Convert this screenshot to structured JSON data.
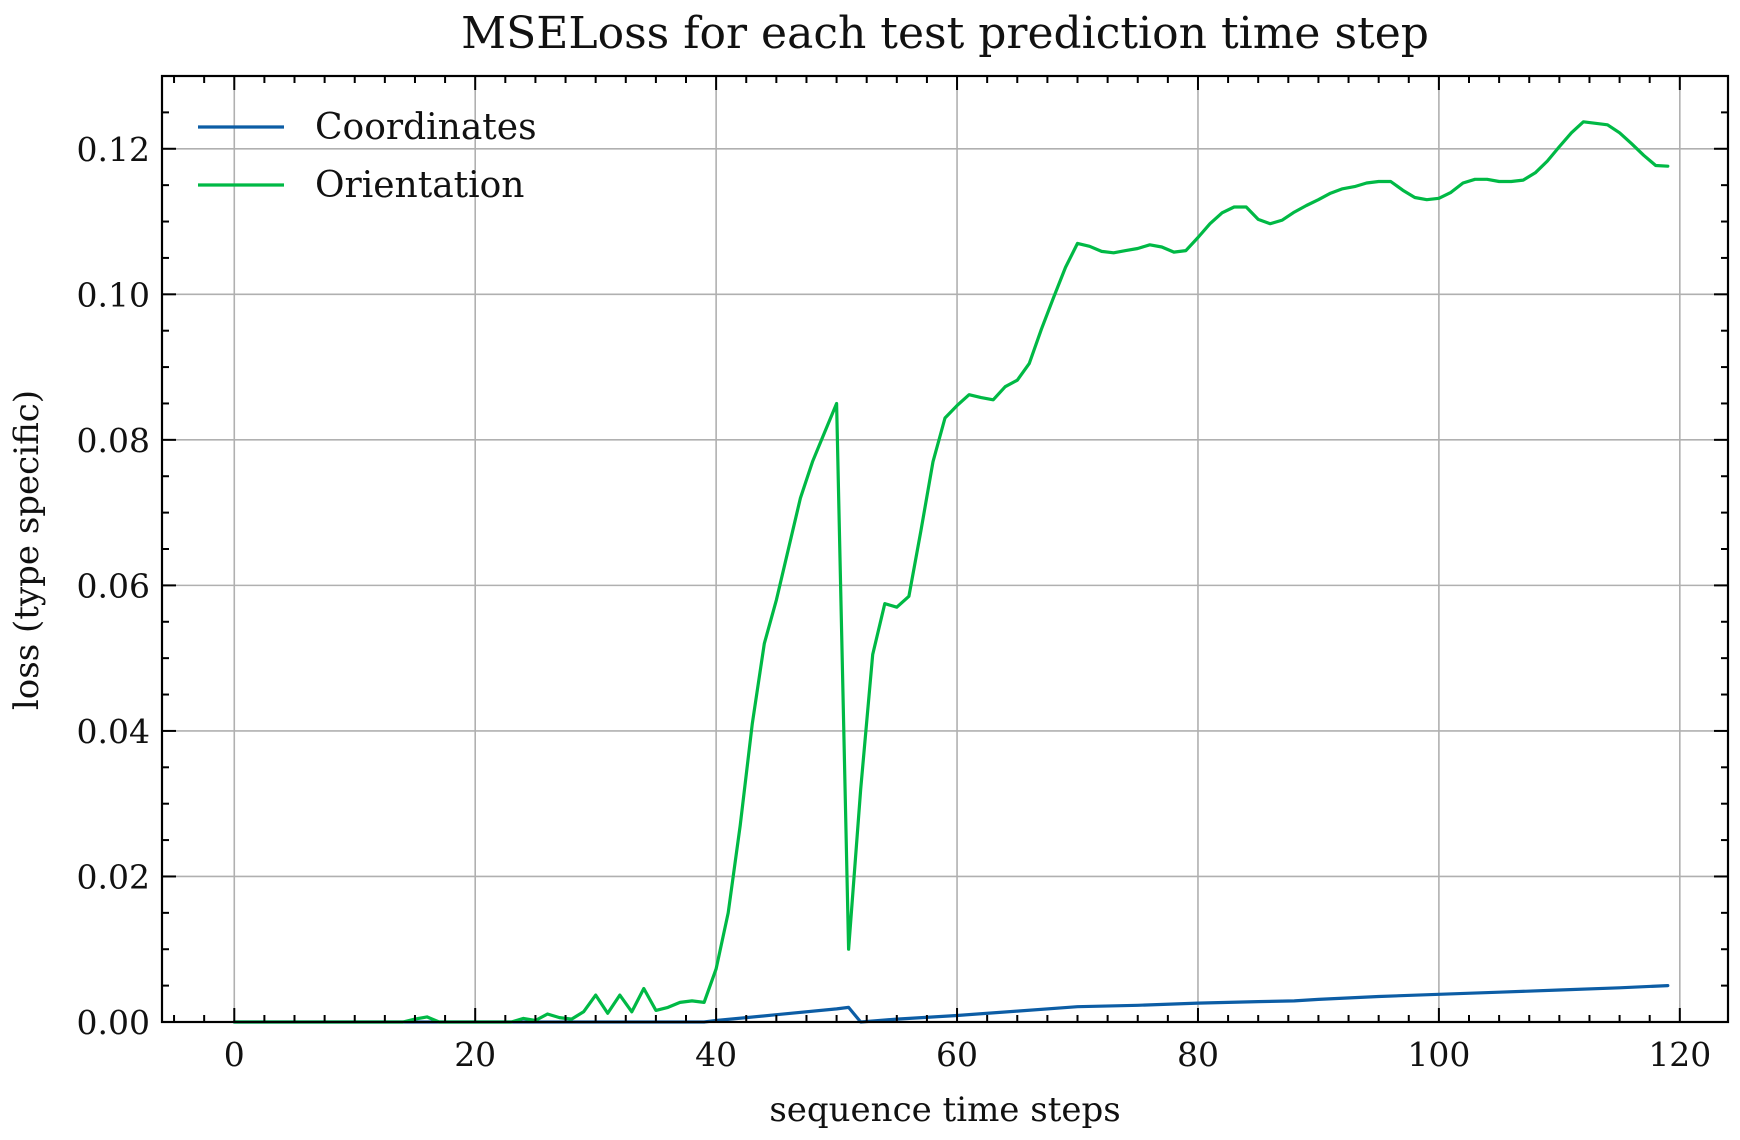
{
  "chart_data": {
    "type": "line",
    "title": "MSELoss for each test prediction time step",
    "xlabel": "sequence time steps",
    "ylabel": "loss (type specific)",
    "xlim": [
      -6,
      124
    ],
    "ylim": [
      0,
      0.13
    ],
    "xticks": [
      0,
      20,
      40,
      60,
      80,
      100,
      120
    ],
    "xtick_labels": [
      "0",
      "20",
      "40",
      "60",
      "80",
      "100",
      "120"
    ],
    "yticks": [
      0.0,
      0.02,
      0.04,
      0.06,
      0.08,
      0.1,
      0.12
    ],
    "ytick_labels": [
      "0.00",
      "0.02",
      "0.04",
      "0.06",
      "0.08",
      "0.10",
      "0.12"
    ],
    "grid": true,
    "legend_position": "top-left",
    "series": [
      {
        "name": "Coordinates",
        "color": "#0c5da5",
        "x": [
          0,
          10,
          20,
          30,
          39,
          40,
          45,
          50,
          51,
          52,
          55,
          60,
          65,
          70,
          75,
          80,
          85,
          88,
          90,
          95,
          100,
          105,
          110,
          115,
          119
        ],
        "y": [
          0,
          0,
          0,
          0,
          0,
          0.0002,
          0.001,
          0.0018,
          0.002,
          0.0,
          0.0004,
          0.0009,
          0.0015,
          0.0021,
          0.0023,
          0.0026,
          0.0028,
          0.0029,
          0.0031,
          0.0035,
          0.0038,
          0.0041,
          0.0044,
          0.0047,
          0.005
        ]
      },
      {
        "name": "Orientation",
        "color": "#00b945",
        "x": [
          0,
          5,
          10,
          14,
          15,
          16,
          17,
          20,
          23,
          24,
          25,
          26,
          27,
          28,
          29,
          30,
          31,
          32,
          33,
          34,
          35,
          36,
          37,
          38,
          39,
          40,
          41,
          42,
          43,
          44,
          45,
          46,
          47,
          48,
          49,
          50,
          51,
          52,
          53,
          54,
          55,
          56,
          57,
          58,
          59,
          60,
          61,
          62,
          63,
          64,
          65,
          66,
          67,
          68,
          69,
          70,
          71,
          72,
          73,
          74,
          75,
          76,
          77,
          78,
          79,
          80,
          81,
          82,
          83,
          84,
          85,
          86,
          87,
          88,
          89,
          90,
          91,
          92,
          93,
          94,
          95,
          96,
          97,
          98,
          99,
          100,
          101,
          102,
          103,
          104,
          105,
          106,
          107,
          108,
          109,
          110,
          111,
          112,
          113,
          114,
          115,
          116,
          117,
          118,
          119
        ],
        "y": [
          0,
          0,
          0,
          0,
          0.0004,
          0.0007,
          0,
          0,
          0,
          0.0005,
          0.0002,
          0.0011,
          0.0006,
          0.0004,
          0.0014,
          0.0037,
          0.0012,
          0.0037,
          0.0014,
          0.0046,
          0.0016,
          0.002,
          0.0027,
          0.0029,
          0.0027,
          0.0073,
          0.015,
          0.027,
          0.041,
          0.052,
          0.058,
          0.065,
          0.072,
          0.077,
          0.081,
          0.085,
          0.01,
          0.032,
          0.0505,
          0.0575,
          0.057,
          0.0585,
          0.0675,
          0.077,
          0.083,
          0.0847,
          0.0862,
          0.0858,
          0.0855,
          0.0873,
          0.0882,
          0.0905,
          0.0952,
          0.0995,
          0.1037,
          0.107,
          0.1066,
          0.1059,
          0.1057,
          0.106,
          0.1063,
          0.1068,
          0.1065,
          0.1058,
          0.106,
          0.1078,
          0.1097,
          0.1112,
          0.112,
          0.112,
          0.1103,
          0.1097,
          0.1102,
          0.1113,
          0.1122,
          0.113,
          0.1139,
          0.1145,
          0.1148,
          0.1153,
          0.1155,
          0.1155,
          0.1143,
          0.1133,
          0.113,
          0.1132,
          0.114,
          0.1153,
          0.1158,
          0.1158,
          0.1155,
          0.1155,
          0.1157,
          0.1167,
          0.1183,
          0.1203,
          0.1222,
          0.1237,
          0.1235,
          0.1233,
          0.1222,
          0.1207,
          0.1191,
          0.1177,
          0.1176
        ]
      }
    ]
  }
}
